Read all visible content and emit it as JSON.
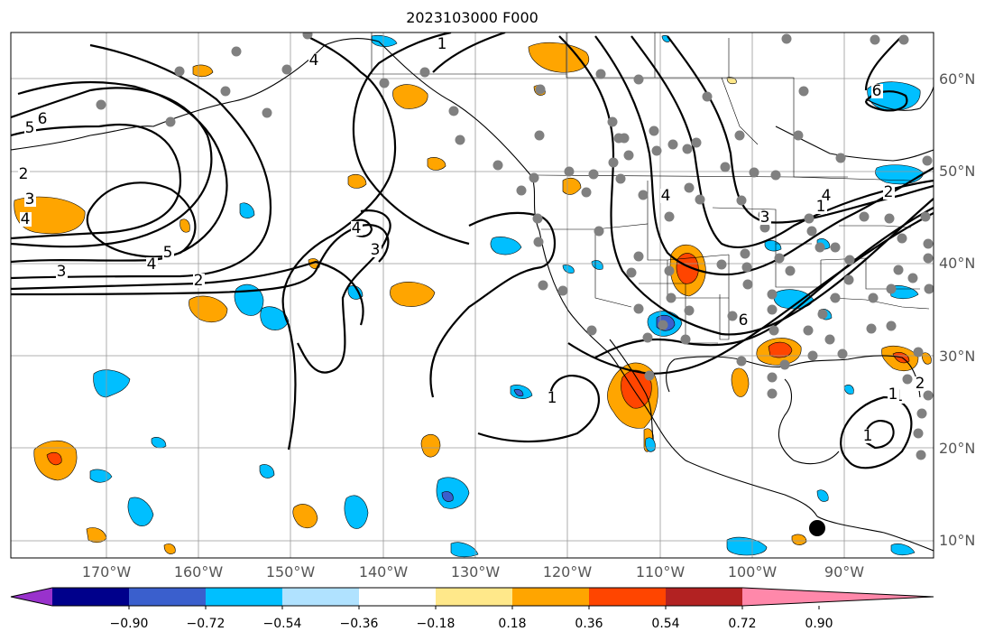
{
  "title": "2023103000 F000",
  "map": {
    "lat_labels": [
      "60°N",
      "50°N",
      "40°N",
      "30°N",
      "20°N",
      "10°N"
    ],
    "lon_labels": [
      "170°W",
      "160°W",
      "150°W",
      "140°W",
      "130°W",
      "120°W",
      "110°W",
      "100°W",
      "90°W"
    ],
    "contour_labels": [
      "6",
      "5",
      "2",
      "3",
      "4",
      "5",
      "4",
      "3",
      "2",
      "4",
      "3",
      "1",
      "4",
      "1",
      "4",
      "6",
      "3",
      "4",
      "2",
      "1",
      "1",
      "1",
      "6",
      "1",
      "2"
    ]
  },
  "colorbar": {
    "ticks": [
      "−0.90",
      "−0.72",
      "−0.54",
      "−0.36",
      "−0.18",
      "0.18",
      "0.36",
      "0.54",
      "0.72",
      "0.90"
    ],
    "colors": [
      "#9932CC",
      "#00008B",
      "#3A5FCD",
      "#00BFFF",
      "#B0E2FF",
      "#FFFFFF",
      "#FFE88A",
      "#FFA500",
      "#FF4500",
      "#B22222",
      "#FF88AA"
    ]
  },
  "colors": {
    "contour": "#000000",
    "grid": "#999999",
    "station": "#808080",
    "label_text": "#555555"
  }
}
